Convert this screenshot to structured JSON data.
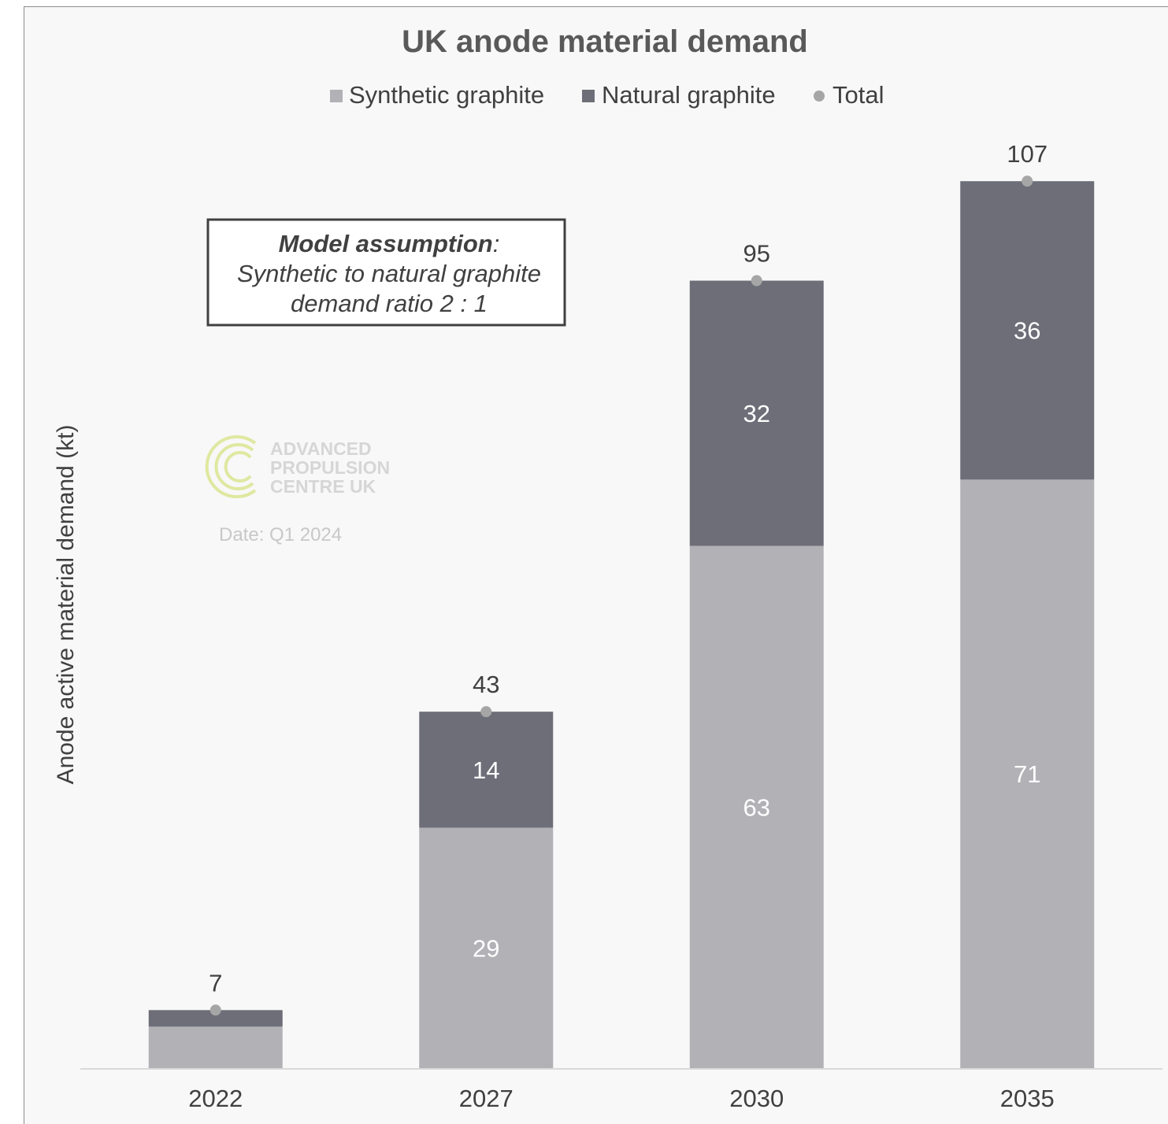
{
  "chart_data": {
    "type": "bar",
    "stacked": true,
    "title": "UK anode material demand",
    "xlabel": "",
    "ylabel": "Anode active material demand (kt)",
    "categories": [
      "2022",
      "2027",
      "2030",
      "2035"
    ],
    "series": [
      {
        "name": "Synthetic graphite",
        "values": [
          5,
          29,
          63,
          71
        ],
        "value_labels": [
          "",
          "29",
          "63",
          "71"
        ],
        "color": "#b1b1b6"
      },
      {
        "name": "Natural graphite",
        "values": [
          2,
          14,
          32,
          36
        ],
        "value_labels": [
          "",
          "14",
          "32",
          "36"
        ],
        "color": "#6d6e78"
      }
    ],
    "totals": {
      "name": "Total",
      "values": [
        7,
        43,
        95,
        107
      ],
      "labels": [
        "7",
        "43",
        "95",
        "107"
      ],
      "color": "#a6a6a6"
    },
    "ylim": [
      0,
      113
    ],
    "grid": false,
    "legend_position": "top",
    "annotation": {
      "heading": "Model assumption",
      "colon": ":",
      "lines": [
        "Synthetic to natural graphite",
        "demand ratio 2 : 1"
      ]
    }
  },
  "watermark": {
    "logo_lines": [
      "ADVANCED",
      "PROPULSION",
      "CENTRE UK"
    ],
    "logo_color": "#dfe8a0",
    "date": "Date: Q1 2024"
  },
  "colors": {
    "background": "#f8f8f8",
    "axis": "#d9d9d9"
  }
}
